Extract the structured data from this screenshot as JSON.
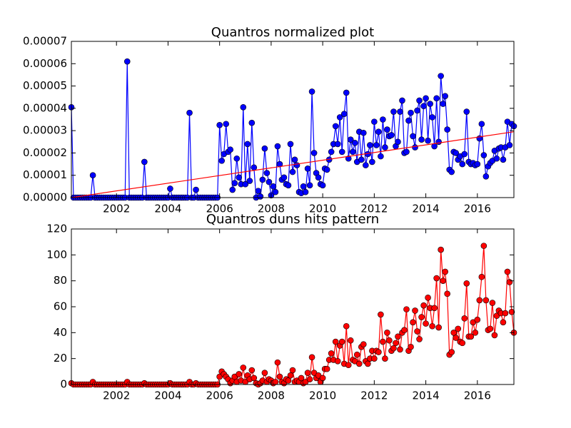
{
  "chart_data": [
    {
      "type": "line",
      "title": "Quantros normalized plot",
      "x": [
        2000.25,
        2000.333,
        2000.417,
        2000.5,
        2000.583,
        2000.667,
        2000.75,
        2000.833,
        2000.917,
        2001,
        2001.083,
        2001.167,
        2001.25,
        2001.333,
        2001.417,
        2001.5,
        2001.583,
        2001.667,
        2001.75,
        2001.833,
        2001.917,
        2002,
        2002.083,
        2002.167,
        2002.25,
        2002.333,
        2002.417,
        2002.5,
        2002.583,
        2002.667,
        2002.75,
        2002.833,
        2002.917,
        2003,
        2003.083,
        2003.167,
        2003.25,
        2003.333,
        2003.417,
        2003.5,
        2003.583,
        2003.667,
        2003.75,
        2003.833,
        2003.917,
        2004,
        2004.083,
        2004.167,
        2004.25,
        2004.333,
        2004.417,
        2004.5,
        2004.583,
        2004.667,
        2004.75,
        2004.833,
        2004.917,
        2005,
        2005.083,
        2005.167,
        2005.25,
        2005.333,
        2005.417,
        2005.5,
        2005.583,
        2005.667,
        2005.75,
        2005.833,
        2005.917,
        2006,
        2006.083,
        2006.167,
        2006.25,
        2006.333,
        2006.417,
        2006.5,
        2006.583,
        2006.667,
        2006.75,
        2006.833,
        2006.917,
        2007,
        2007.083,
        2007.167,
        2007.25,
        2007.333,
        2007.417,
        2007.5,
        2007.583,
        2007.667,
        2007.75,
        2007.833,
        2007.917,
        2008,
        2008.083,
        2008.167,
        2008.25,
        2008.333,
        2008.417,
        2008.5,
        2008.583,
        2008.667,
        2008.75,
        2008.833,
        2008.917,
        2009,
        2009.083,
        2009.167,
        2009.25,
        2009.333,
        2009.417,
        2009.5,
        2009.583,
        2009.667,
        2009.75,
        2009.833,
        2009.917,
        2010,
        2010.083,
        2010.167,
        2010.25,
        2010.333,
        2010.417,
        2010.5,
        2010.583,
        2010.667,
        2010.75,
        2010.833,
        2010.917,
        2011,
        2011.083,
        2011.167,
        2011.25,
        2011.333,
        2011.417,
        2011.5,
        2011.583,
        2011.667,
        2011.75,
        2011.833,
        2011.917,
        2012,
        2012.083,
        2012.167,
        2012.25,
        2012.333,
        2012.417,
        2012.5,
        2012.583,
        2012.667,
        2012.75,
        2012.833,
        2012.917,
        2013,
        2013.083,
        2013.167,
        2013.25,
        2013.333,
        2013.417,
        2013.5,
        2013.583,
        2013.667,
        2013.75,
        2013.833,
        2013.917,
        2014,
        2014.083,
        2014.167,
        2014.25,
        2014.333,
        2014.417,
        2014.5,
        2014.583,
        2014.667,
        2014.75,
        2014.833,
        2014.917,
        2015,
        2015.083,
        2015.167,
        2015.25,
        2015.333,
        2015.417,
        2015.5,
        2015.583,
        2015.667,
        2015.75,
        2015.833,
        2015.917,
        2016,
        2016.083,
        2016.167,
        2016.25,
        2016.333,
        2016.417,
        2016.5,
        2016.583,
        2016.667,
        2016.75,
        2016.833,
        2016.917,
        2017,
        2017.083,
        2017.167,
        2017.25,
        2017.333,
        2017.417
      ],
      "series": [
        {
          "color": "#0000ff",
          "values": [
            4.05e-05,
            0,
            0,
            0,
            0,
            0,
            0,
            0,
            0,
            0,
            1e-05,
            0,
            0,
            0,
            0,
            0,
            0,
            0,
            0,
            0,
            0,
            0,
            0,
            0,
            0,
            0,
            6.1e-05,
            0,
            0,
            0,
            0,
            0,
            0,
            0,
            1.6e-05,
            0,
            0,
            0,
            0,
            0,
            0,
            0,
            0,
            0,
            0,
            0,
            4e-06,
            0,
            0,
            0,
            0,
            0,
            0,
            0,
            0,
            3.8e-05,
            0,
            0,
            3.5e-06,
            0,
            0,
            0,
            0,
            0,
            0,
            0,
            0,
            0,
            0,
            3.25e-05,
            1.65e-05,
            1.95e-05,
            3.3e-05,
            2.05e-05,
            2.15e-05,
            3.5e-06,
            6.5e-06,
            1.75e-05,
            9e-06,
            6e-06,
            4.05e-05,
            6e-06,
            2.4e-05,
            7.5e-06,
            3.35e-05,
            1.35e-05,
            0,
            3e-06,
            5e-07,
            8e-06,
            2.2e-05,
            1.1e-05,
            7e-06,
            1e-06,
            5e-06,
            2.5e-06,
            2.3e-05,
            1.5e-05,
            8e-06,
            9e-06,
            6e-06,
            5.5e-06,
            2.4e-05,
            1.15e-05,
            1.7e-05,
            1.45e-05,
            2.5e-06,
            2e-06,
            5e-06,
            2.5e-06,
            1.3e-05,
            5.5e-06,
            4.75e-05,
            2e-05,
            1.1e-05,
            9e-06,
            6e-06,
            5.5e-06,
            1.3e-05,
            1.25e-05,
            1.7e-05,
            2.05e-05,
            2.4e-05,
            3.2e-05,
            2.4e-05,
            3.6e-05,
            2.05e-05,
            3.75e-05,
            4.7e-05,
            1.75e-05,
            2.6e-05,
            2.05e-05,
            2.45e-05,
            1.6e-05,
            2.95e-05,
            1.7e-05,
            2.9e-05,
            1.45e-05,
            1.95e-05,
            2.35e-05,
            1.6e-05,
            3.4e-05,
            2.35e-05,
            2.95e-05,
            1.85e-05,
            3.5e-05,
            2.25e-05,
            3.05e-05,
            2.75e-05,
            2.8e-05,
            3.85e-05,
            2.3e-05,
            2.5e-05,
            3.85e-05,
            4.35e-05,
            2e-05,
            2.05e-05,
            3.45e-05,
            3.8e-05,
            2.75e-05,
            2.25e-05,
            3.9e-05,
            4.35e-05,
            2.6e-05,
            4.1e-05,
            4.45e-05,
            2.55e-05,
            4.2e-05,
            3.6e-05,
            2.3e-05,
            4.45e-05,
            2.5e-05,
            5.45e-05,
            4.2e-05,
            4.55e-05,
            3.05e-05,
            1.25e-05,
            1.15e-05,
            2.05e-05,
            2e-05,
            1.7e-05,
            1.85e-05,
            1.5e-05,
            1.95e-05,
            3.85e-05,
            1.6e-05,
            1.5e-05,
            1.55e-05,
            1.45e-05,
            1.5e-05,
            2.65e-05,
            3.3e-05,
            1.9e-05,
            9.5e-06,
            1.4e-05,
            1.55e-05,
            1.65e-05,
            2.1e-05,
            1.75e-05,
            2.2e-05,
            2.25e-05,
            1.7e-05,
            2.25e-05,
            3.4e-05,
            2.35e-05,
            3.3e-05,
            3.2e-05
          ]
        }
      ],
      "trend_line": {
        "color": "#ff0000",
        "x": [
          2000.25,
          2017.417
        ],
        "values": [
          0,
          2.95e-05
        ]
      },
      "xlim": [
        2000.25,
        2017.417
      ],
      "xticks": [
        2002,
        2004,
        2006,
        2008,
        2010,
        2012,
        2014,
        2016
      ],
      "ylim": [
        0,
        7e-05
      ],
      "yticks": [
        {
          "value": 0,
          "label": "0.00000"
        },
        {
          "value": 1e-05,
          "label": "0.00001"
        },
        {
          "value": 2e-05,
          "label": "0.00002"
        },
        {
          "value": 3e-05,
          "label": "0.00003"
        },
        {
          "value": 4e-05,
          "label": "0.00004"
        },
        {
          "value": 5e-05,
          "label": "0.00005"
        },
        {
          "value": 6e-05,
          "label": "0.00006"
        },
        {
          "value": 7e-05,
          "label": "0.00007"
        }
      ]
    },
    {
      "type": "line",
      "title": "Quantros duns hits pattern",
      "x": [
        2000.25,
        2000.333,
        2000.417,
        2000.5,
        2000.583,
        2000.667,
        2000.75,
        2000.833,
        2000.917,
        2001,
        2001.083,
        2001.167,
        2001.25,
        2001.333,
        2001.417,
        2001.5,
        2001.583,
        2001.667,
        2001.75,
        2001.833,
        2001.917,
        2002,
        2002.083,
        2002.167,
        2002.25,
        2002.333,
        2002.417,
        2002.5,
        2002.583,
        2002.667,
        2002.75,
        2002.833,
        2002.917,
        2003,
        2003.083,
        2003.167,
        2003.25,
        2003.333,
        2003.417,
        2003.5,
        2003.583,
        2003.667,
        2003.75,
        2003.833,
        2003.917,
        2004,
        2004.083,
        2004.167,
        2004.25,
        2004.333,
        2004.417,
        2004.5,
        2004.583,
        2004.667,
        2004.75,
        2004.833,
        2004.917,
        2005,
        2005.083,
        2005.167,
        2005.25,
        2005.333,
        2005.417,
        2005.5,
        2005.583,
        2005.667,
        2005.75,
        2005.833,
        2005.917,
        2006,
        2006.083,
        2006.167,
        2006.25,
        2006.333,
        2006.417,
        2006.5,
        2006.583,
        2006.667,
        2006.75,
        2006.833,
        2006.917,
        2007,
        2007.083,
        2007.167,
        2007.25,
        2007.333,
        2007.417,
        2007.5,
        2007.583,
        2007.667,
        2007.75,
        2007.833,
        2007.917,
        2008,
        2008.083,
        2008.167,
        2008.25,
        2008.333,
        2008.417,
        2008.5,
        2008.583,
        2008.667,
        2008.75,
        2008.833,
        2008.917,
        2009,
        2009.083,
        2009.167,
        2009.25,
        2009.333,
        2009.417,
        2009.5,
        2009.583,
        2009.667,
        2009.75,
        2009.833,
        2009.917,
        2010,
        2010.083,
        2010.167,
        2010.25,
        2010.333,
        2010.417,
        2010.5,
        2010.583,
        2010.667,
        2010.75,
        2010.833,
        2010.917,
        2011,
        2011.083,
        2011.167,
        2011.25,
        2011.333,
        2011.417,
        2011.5,
        2011.583,
        2011.667,
        2011.75,
        2011.833,
        2011.917,
        2012,
        2012.083,
        2012.167,
        2012.25,
        2012.333,
        2012.417,
        2012.5,
        2012.583,
        2012.667,
        2012.75,
        2012.833,
        2012.917,
        2013,
        2013.083,
        2013.167,
        2013.25,
        2013.333,
        2013.417,
        2013.5,
        2013.583,
        2013.667,
        2013.75,
        2013.833,
        2013.917,
        2014,
        2014.083,
        2014.167,
        2014.25,
        2014.333,
        2014.417,
        2014.5,
        2014.583,
        2014.667,
        2014.75,
        2014.833,
        2014.917,
        2015,
        2015.083,
        2015.167,
        2015.25,
        2015.333,
        2015.417,
        2015.5,
        2015.583,
        2015.667,
        2015.75,
        2015.833,
        2015.917,
        2016,
        2016.083,
        2016.167,
        2016.25,
        2016.333,
        2016.417,
        2016.5,
        2016.583,
        2016.667,
        2016.75,
        2016.833,
        2016.917,
        2017,
        2017.083,
        2017.167,
        2017.25,
        2017.333,
        2017.417
      ],
      "series": [
        {
          "color": "#ff0000",
          "values": [
            1,
            0,
            0,
            0,
            0,
            0,
            0,
            0,
            0,
            0,
            2,
            0,
            0,
            0,
            0,
            0,
            0,
            0,
            0,
            0,
            0,
            0,
            0,
            0,
            0,
            0,
            2,
            0,
            0,
            0,
            0,
            0,
            0,
            0,
            1,
            0,
            0,
            0,
            0,
            0,
            0,
            0,
            0,
            0,
            0,
            0,
            1,
            0,
            0,
            0,
            0,
            0,
            0,
            0,
            0,
            2,
            0,
            0,
            1,
            0,
            0,
            0,
            0,
            0,
            0,
            0,
            0,
            0,
            0,
            6,
            10,
            8,
            6,
            4,
            1,
            3,
            6,
            2,
            8,
            3,
            13,
            2,
            7,
            4,
            11,
            5,
            1,
            0,
            1,
            3,
            9,
            2,
            4,
            3,
            1,
            2,
            17,
            6,
            2,
            1,
            4,
            3,
            7,
            11,
            2,
            3,
            2,
            5,
            1,
            2,
            9,
            4,
            21,
            9,
            5,
            7,
            2,
            5,
            12,
            12,
            19,
            24,
            19,
            33,
            18,
            30,
            33,
            16,
            45,
            15,
            34,
            19,
            18,
            23,
            16,
            29,
            31,
            18,
            16,
            20,
            26,
            20,
            26,
            25,
            54,
            33,
            20,
            40,
            34,
            26,
            28,
            32,
            37,
            27,
            40,
            42,
            58,
            26,
            29,
            48,
            57,
            41,
            35,
            52,
            61,
            47,
            67,
            59,
            45,
            59,
            82,
            44,
            104,
            80,
            87,
            70,
            23,
            25,
            40,
            36,
            43,
            33,
            32,
            51,
            78,
            37,
            37,
            48,
            40,
            50,
            65,
            83,
            107,
            65,
            42,
            43,
            63,
            38,
            53,
            57,
            55,
            48,
            55,
            87,
            79,
            56,
            40
          ]
        }
      ],
      "xlim": [
        2000.25,
        2017.417
      ],
      "xticks": [
        2002,
        2004,
        2006,
        2008,
        2010,
        2012,
        2014,
        2016
      ],
      "ylim": [
        0,
        120
      ],
      "yticks": [
        0,
        20,
        40,
        60,
        80,
        100,
        120
      ]
    }
  ]
}
